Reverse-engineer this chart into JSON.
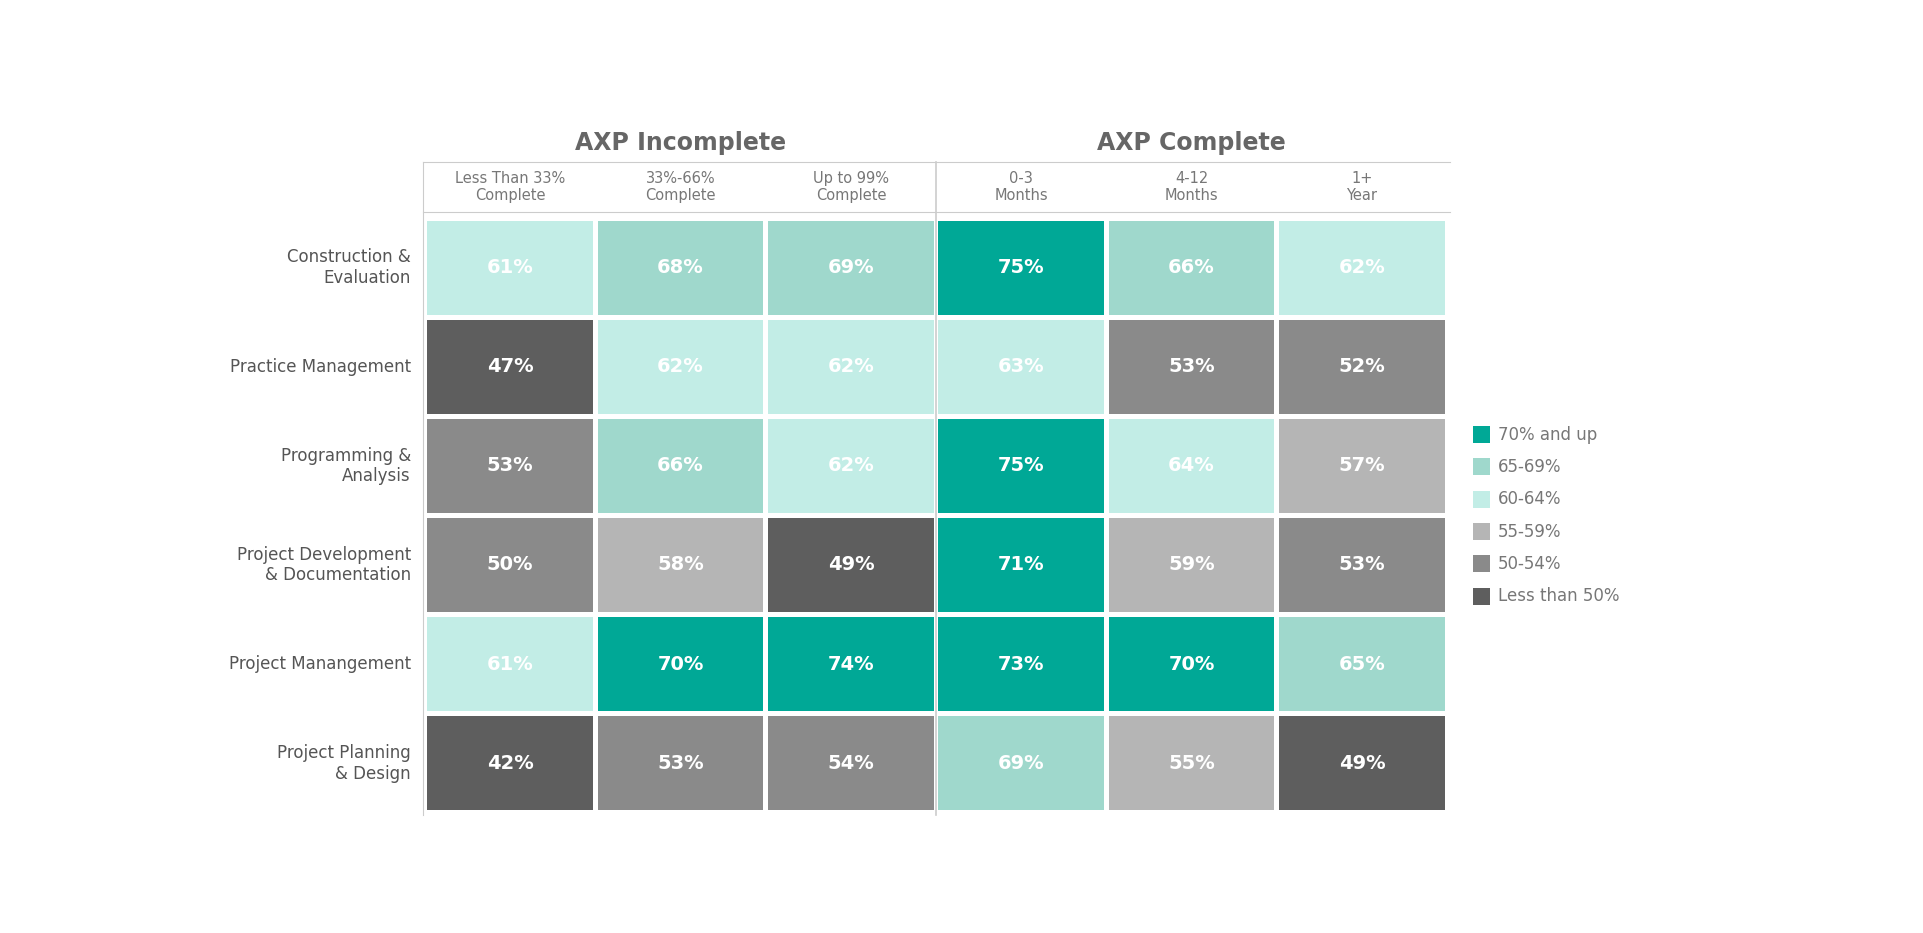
{
  "rows": [
    {
      "label": "Construction &\nEvaluation",
      "values": [
        61,
        68,
        69,
        75,
        66,
        62
      ]
    },
    {
      "label": "Practice Management",
      "values": [
        47,
        62,
        62,
        63,
        53,
        52
      ]
    },
    {
      "label": "Programming &\nAnalysis",
      "values": [
        53,
        66,
        62,
        75,
        64,
        57
      ]
    },
    {
      "label": "Project Development\n& Documentation",
      "values": [
        50,
        58,
        49,
        71,
        59,
        53
      ]
    },
    {
      "label": "Project Manangement",
      "values": [
        61,
        70,
        74,
        73,
        70,
        65
      ]
    },
    {
      "label": "Project Planning\n& Design",
      "values": [
        42,
        53,
        54,
        69,
        55,
        49
      ]
    }
  ],
  "col_headers_top": [
    "AXP Incomplete",
    "AXP Complete"
  ],
  "col_headers_sub": [
    "Less Than 33%\nComplete",
    "33%-66%\nComplete",
    "Up to 99%\nComplete",
    "0-3\nMonths",
    "4-12\nMonths",
    "1+\nYear"
  ],
  "color_bins": [
    {
      "label": "70% and up",
      "color": "#00a896"
    },
    {
      "label": "65-69%",
      "color": "#9fd8cc"
    },
    {
      "label": "60-64%",
      "color": "#c2ede6"
    },
    {
      "label": "55-59%",
      "color": "#b5b5b5"
    },
    {
      "label": "50-54%",
      "color": "#8a8a8a"
    },
    {
      "label": "Less than 50%",
      "color": "#5e5e5e"
    }
  ],
  "background_color": "#ffffff",
  "header_color": "#666666",
  "label_color": "#777777",
  "row_label_color": "#555555"
}
